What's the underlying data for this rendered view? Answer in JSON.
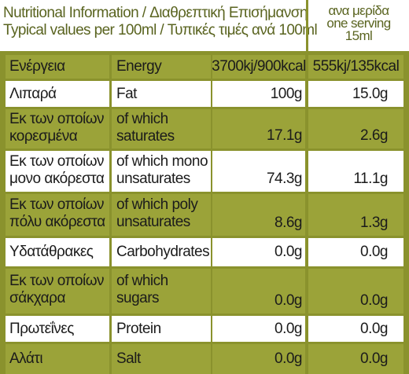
{
  "header": {
    "title_line1": "Nutritional Information / Διαθρεπτική Επισήμανση",
    "title_line2": "Typical values per 100ml / Τυπικές τιμές ανά 100ml",
    "serving_line1": "ανα μερίδα",
    "serving_line2": "one serving",
    "serving_line3": "15ml"
  },
  "rows": [
    {
      "greek": [
        "Ενέργεια"
      ],
      "english": [
        "Energy"
      ],
      "per100": "3700kj/900kcal",
      "serving": "555kj/135kcal"
    },
    {
      "greek": [
        "Λιπαρά"
      ],
      "english": [
        "Fat"
      ],
      "per100": "100g",
      "serving": "15.0g"
    },
    {
      "greek": [
        "Εκ των οποίων",
        "κορεσμένα"
      ],
      "english": [
        "of which",
        "saturates"
      ],
      "per100": "17.1g",
      "serving": "2.6g"
    },
    {
      "greek": [
        "Εκ των οποίων",
        "μονο ακόρεστα"
      ],
      "english": [
        "of which mono",
        "unsaturates"
      ],
      "per100": "74.3g",
      "serving": "11.1g"
    },
    {
      "greek": [
        "Εκ των οποίων",
        "πόλυ ακόρεστα"
      ],
      "english": [
        "of which poly",
        "unsaturates"
      ],
      "per100": "8.6g",
      "serving": "1.3g"
    },
    {
      "greek": [
        "Υδατάθρακες"
      ],
      "english": [
        "Carbohydrates"
      ],
      "per100": "0.0g",
      "serving": "0.0g"
    },
    {
      "greek": [
        "Εκ των οποίων",
        "σάκχαρα"
      ],
      "english": [
        "of which",
        "sugars"
      ],
      "per100": "0.0g",
      "serving": "0.0g"
    },
    {
      "greek": [
        "Πρωτεΐνες"
      ],
      "english": [
        "Protein"
      ],
      "per100": "0.0g",
      "serving": "0.0g"
    },
    {
      "greek": [
        "Αλάτι"
      ],
      "english": [
        "Salt"
      ],
      "per100": "0.0g",
      "serving": "0.0g"
    }
  ],
  "colors": {
    "olive": "#8a922d",
    "olive_light": "#9ba339",
    "header_text": "#5a6420"
  }
}
